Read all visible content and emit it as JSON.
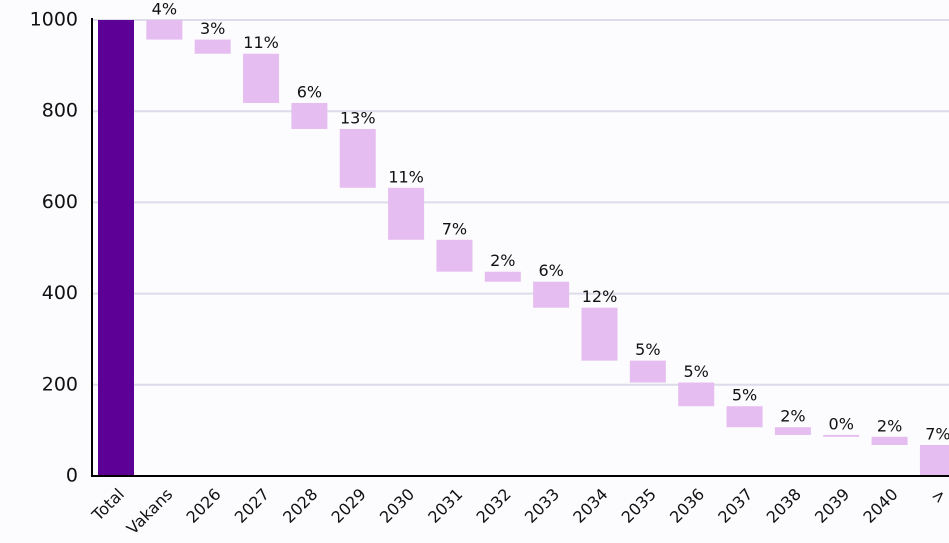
{
  "chart_data": {
    "type": "waterfall",
    "categories": [
      "Total",
      "Vakans",
      "2026",
      "2027",
      "2028",
      "2029",
      "2030",
      "2031",
      "2032",
      "2033",
      "2034",
      "2035",
      "2036",
      "2037",
      "2038",
      "2039",
      "2040",
      ">"
    ],
    "values": [
      1000,
      43,
      31,
      108,
      57,
      129,
      114,
      70,
      22,
      57,
      116,
      48,
      52,
      46,
      17,
      4,
      18,
      68
    ],
    "value_labels": [
      null,
      "4%",
      "3%",
      "11%",
      "6%",
      "13%",
      "11%",
      "7%",
      "2%",
      "6%",
      "12%",
      "5%",
      "5%",
      "5%",
      "2%",
      "0%",
      "2%",
      "7%"
    ],
    "total_color": "#5c0096",
    "color": "#e6bdf0",
    "ylim": [
      0,
      1000
    ],
    "yticks": [
      0,
      200,
      400,
      600,
      800,
      1000
    ],
    "grid": true
  }
}
